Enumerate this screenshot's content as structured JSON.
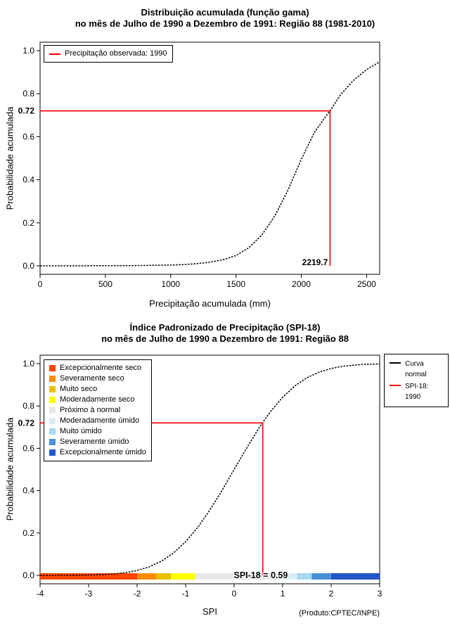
{
  "page": {
    "background": "#ffffff"
  },
  "footer_note": "(Produto:CPTEC/INPE)",
  "chart_data": [
    {
      "id": "gamma-cdf",
      "type": "line",
      "title_lines": [
        "Distribuição acumulada (função gama)",
        "no mês de Julho de 1990 a Dezembro de 1991: Região 88 (1981-2010)"
      ],
      "xlabel": "Precipitação acumulada (mm)",
      "ylabel": "Probabilidade acumulada",
      "xlim": [
        0,
        2600
      ],
      "ylim": [
        0,
        1
      ],
      "xticks": [
        0,
        500,
        1000,
        1500,
        2000,
        2500
      ],
      "yticks": [
        0,
        0.2,
        0.4,
        0.6,
        0.8,
        1
      ],
      "grid": false,
      "legend_position": "top-left",
      "legend_items": [
        {
          "label": "Precipitação observada: 1990",
          "swatch": "line",
          "color": "#ff0000"
        }
      ],
      "marker": {
        "x": 2219.7,
        "y": 0.72,
        "x_label": "2219.7",
        "y_label": "0.72",
        "color": "#ff0000"
      },
      "series": [
        {
          "name": "curva-gama",
          "color": "#000000",
          "points": [
            [
              0,
              0
            ],
            [
              100,
              0
            ],
            [
              200,
              0
            ],
            [
              300,
              0
            ],
            [
              400,
              0.001
            ],
            [
              500,
              0.001
            ],
            [
              600,
              0.001
            ],
            [
              700,
              0.001
            ],
            [
              800,
              0.002
            ],
            [
              900,
              0.003
            ],
            [
              1000,
              0.004
            ],
            [
              1100,
              0.006
            ],
            [
              1200,
              0.01
            ],
            [
              1300,
              0.017
            ],
            [
              1400,
              0.028
            ],
            [
              1500,
              0.048
            ],
            [
              1600,
              0.085
            ],
            [
              1700,
              0.145
            ],
            [
              1800,
              0.235
            ],
            [
              1900,
              0.355
            ],
            [
              2000,
              0.495
            ],
            [
              2100,
              0.62
            ],
            [
              2200,
              0.705
            ],
            [
              2219.7,
              0.72
            ],
            [
              2300,
              0.795
            ],
            [
              2400,
              0.862
            ],
            [
              2500,
              0.912
            ],
            [
              2600,
              0.948
            ]
          ]
        }
      ]
    },
    {
      "id": "spi-cdf",
      "type": "line",
      "title_lines": [
        "Índice Padronizado de Precipitação (SPI-18)",
        "no mês de Julho de 1990 a Dezembro de 1991: Região 88"
      ],
      "xlabel": "SPI",
      "ylabel": "Probabilidade acumulada",
      "xlim": [
        -4,
        3
      ],
      "ylim": [
        0,
        1
      ],
      "xticks": [
        -4,
        -3,
        -2,
        -1,
        0,
        1,
        2,
        3
      ],
      "yticks": [
        0,
        0.2,
        0.4,
        0.6,
        0.8,
        1
      ],
      "grid": false,
      "marker": {
        "x": 0.59,
        "y": 0.72,
        "x_label": "",
        "y_label": "0.72",
        "color": "#ff0000"
      },
      "spi_annotation": "SPI-18 = 0.59",
      "category_legend": [
        {
          "label": "Excepcionalmente seco",
          "color": "#ff4500"
        },
        {
          "label": "Severamente seco",
          "color": "#ff8c00"
        },
        {
          "label": "Muito seco",
          "color": "#e8c000"
        },
        {
          "label": "Moderadamente seco",
          "color": "#ffff00"
        },
        {
          "label": "Próximo à normal",
          "color": "#e8e8e8"
        },
        {
          "label": "Moderadamente úmido",
          "color": "#daedf7"
        },
        {
          "label": "Muito úmido",
          "color": "#a8d9f0"
        },
        {
          "label": "Severamente úmido",
          "color": "#4a90d9"
        },
        {
          "label": "Excepcionalmente úmido",
          "color": "#2255c8"
        }
      ],
      "legend_items": [
        {
          "label": "Curva\nnormal",
          "swatch": "line",
          "color": "#000000"
        },
        {
          "label": "SPI-18: 1990",
          "swatch": "line",
          "color": "#ff0000"
        }
      ],
      "colorbar": {
        "segments": [
          {
            "from": -4,
            "to": -2,
            "color": "#ff4500"
          },
          {
            "from": -2,
            "to": -1.6,
            "color": "#ff8c00"
          },
          {
            "from": -1.6,
            "to": -1.3,
            "color": "#e8c000"
          },
          {
            "from": -1.3,
            "to": -0.8,
            "color": "#ffff00"
          },
          {
            "from": -0.8,
            "to": 0.8,
            "color": "#e8e8e8"
          },
          {
            "from": 0.8,
            "to": 1.3,
            "color": "#daedf7"
          },
          {
            "from": 1.3,
            "to": 1.6,
            "color": "#a8d9f0"
          },
          {
            "from": 1.6,
            "to": 2,
            "color": "#4a90d9"
          },
          {
            "from": 2,
            "to": 3,
            "color": "#2255c8"
          }
        ]
      },
      "series": [
        {
          "name": "curva-normal",
          "color": "#000000",
          "points": [
            [
              -4,
              0.0001
            ],
            [
              -3.5,
              0.0002
            ],
            [
              -3,
              0.0013
            ],
            [
              -2.75,
              0.003
            ],
            [
              -2.5,
              0.0062
            ],
            [
              -2.25,
              0.0122
            ],
            [
              -2,
              0.0228
            ],
            [
              -1.75,
              0.0401
            ],
            [
              -1.5,
              0.0668
            ],
            [
              -1.25,
              0.1056
            ],
            [
              -1,
              0.1587
            ],
            [
              -0.75,
              0.2266
            ],
            [
              -0.5,
              0.3085
            ],
            [
              -0.25,
              0.4013
            ],
            [
              0,
              0.5
            ],
            [
              0.25,
              0.5987
            ],
            [
              0.5,
              0.6915
            ],
            [
              0.59,
              0.7224
            ],
            [
              0.75,
              0.7734
            ],
            [
              1,
              0.8413
            ],
            [
              1.25,
              0.8944
            ],
            [
              1.5,
              0.9332
            ],
            [
              1.75,
              0.9599
            ],
            [
              2,
              0.9772
            ],
            [
              2.25,
              0.9878
            ],
            [
              2.5,
              0.9938
            ],
            [
              2.75,
              0.997
            ],
            [
              3,
              0.9987
            ]
          ]
        }
      ]
    }
  ]
}
